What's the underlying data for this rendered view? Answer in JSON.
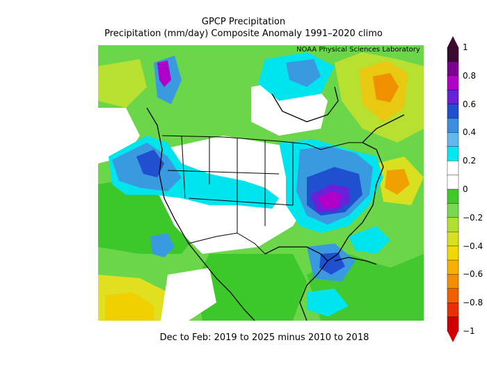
{
  "header": {
    "title": "GPCP Precipitation",
    "subtitle": "Precipitation (mm/day) Composite Anomaly 1991–2020 climo",
    "credit": "NOAA Physical Sciences Laboratory"
  },
  "caption": "Dec to Feb: 2019 to 2025 minus 2010 to 2018",
  "colorbar": {
    "labels": [
      "1",
      "0.8",
      "0.6",
      "0.4",
      "0.2",
      "0",
      "−0.2",
      "−0.4",
      "−0.6",
      "−0.8",
      "−1"
    ],
    "colors": [
      "#3a0a30",
      "#7a0090",
      "#b000c8",
      "#6a20d8",
      "#2050d0",
      "#3a8ee0",
      "#60b8f0",
      "#00e8f0",
      "#ffffff",
      "#ffffff",
      "#40c828",
      "#78d850",
      "#b0e030",
      "#d8e020",
      "#f0d800",
      "#f8b000",
      "#f09000",
      "#f06000",
      "#e83000",
      "#d00000"
    ]
  }
}
